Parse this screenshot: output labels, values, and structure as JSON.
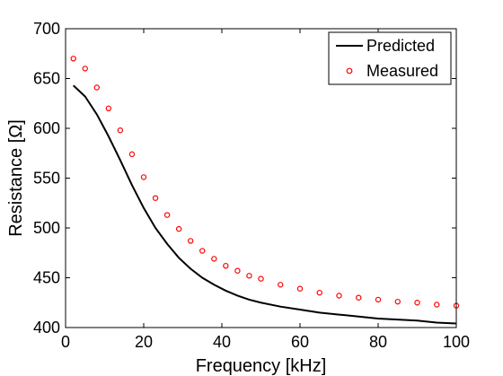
{
  "chart_data": {
    "type": "line",
    "title": "",
    "xlabel": "Frequency [kHz]",
    "ylabel": "Resistance [Ω]",
    "xlim": [
      0,
      100
    ],
    "ylim": [
      400,
      700
    ],
    "xticks": [
      0,
      20,
      40,
      60,
      80,
      100
    ],
    "yticks": [
      400,
      450,
      500,
      550,
      600,
      650,
      700
    ],
    "xtick_labels": [
      "0",
      "20",
      "40",
      "60",
      "80",
      "100"
    ],
    "ytick_labels": [
      "400",
      "450",
      "500",
      "550",
      "600",
      "650",
      "700"
    ],
    "grid": false,
    "legend_position": "top-right",
    "series": [
      {
        "name": "Predicted",
        "style": "line",
        "color": "#000000",
        "x": [
          2,
          5,
          8,
          11,
          14,
          17,
          20,
          23,
          26,
          29,
          32,
          35,
          38,
          41,
          44,
          47,
          50,
          55,
          60,
          65,
          70,
          75,
          80,
          85,
          90,
          95,
          100
        ],
        "y": [
          643,
          632,
          614,
          592,
          568,
          543,
          520,
          500,
          484,
          470,
          459,
          450,
          443,
          437,
          432,
          428,
          425,
          421,
          418,
          415,
          413,
          411,
          409,
          408,
          407,
          405,
          404
        ]
      },
      {
        "name": "Measured",
        "style": "marker",
        "color": "#ff0000",
        "x": [
          2,
          5,
          8,
          11,
          14,
          17,
          20,
          23,
          26,
          29,
          32,
          35,
          38,
          41,
          44,
          47,
          50,
          55,
          60,
          65,
          70,
          75,
          80,
          85,
          90,
          95,
          100
        ],
        "y": [
          670,
          660,
          641,
          620,
          598,
          574,
          551,
          530,
          513,
          499,
          487,
          477,
          469,
          462,
          457,
          452,
          449,
          443,
          439,
          435,
          432,
          430,
          428,
          426,
          425,
          423,
          422
        ]
      }
    ]
  }
}
